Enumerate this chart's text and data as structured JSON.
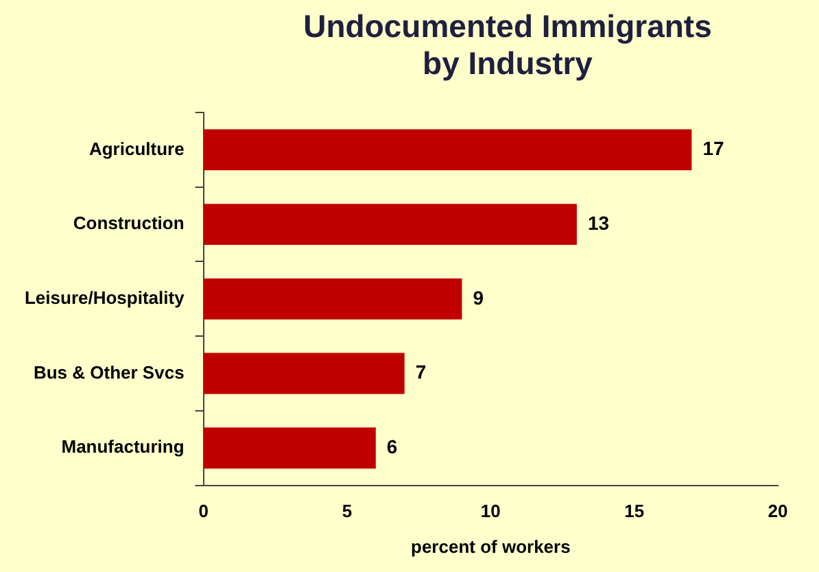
{
  "chart_data": {
    "type": "bar",
    "orientation": "horizontal",
    "title": "Undocumented Immigrants by Industry",
    "xlabel": "percent of workers",
    "categories": [
      "Agriculture",
      "Construction",
      "Leisure/Hospitality",
      "Bus & Other Svcs",
      "Manufacturing"
    ],
    "values": [
      17,
      13,
      9,
      7,
      6
    ],
    "color": "#c00000",
    "xlim": [
      0,
      20
    ],
    "xticks": [
      0,
      5,
      10,
      15,
      20
    ],
    "grid": false,
    "legend": false,
    "data_labels": true
  }
}
